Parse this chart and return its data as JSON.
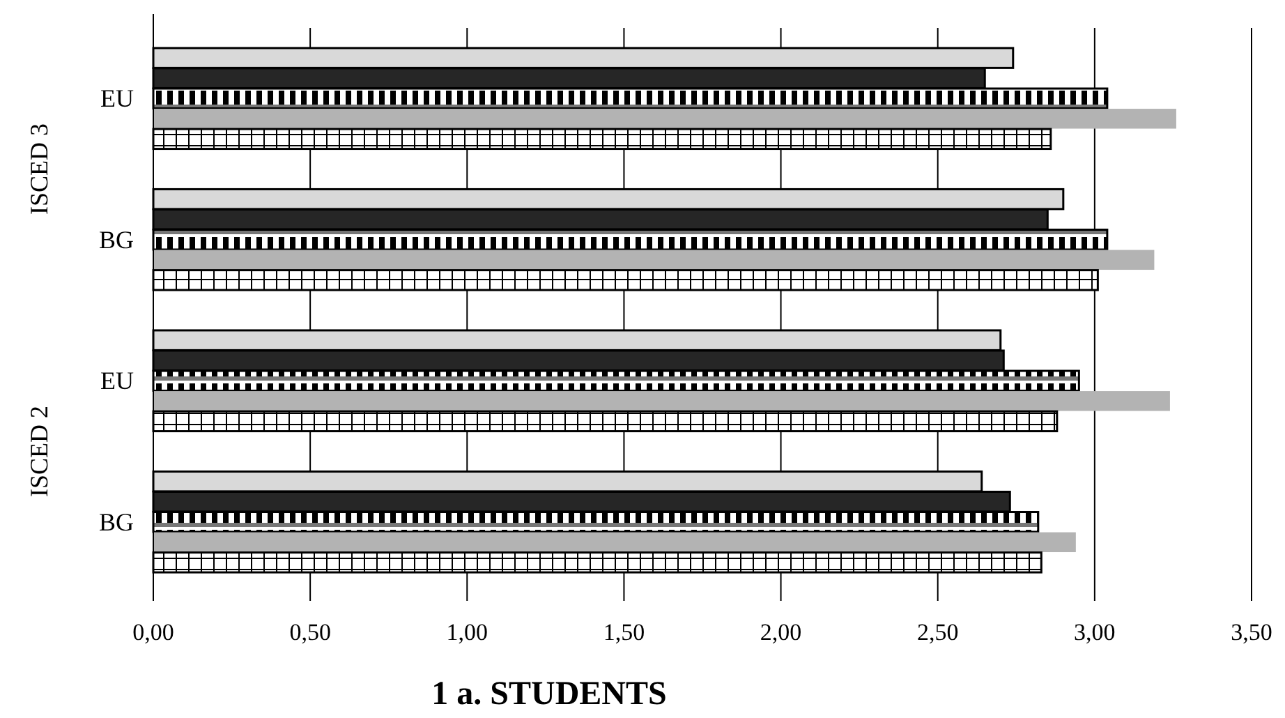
{
  "chart_data": {
    "type": "bar",
    "orientation": "horizontal",
    "title": "1 a. STUDENTS",
    "categories": [
      "EU",
      "BG",
      "EU",
      "BG"
    ],
    "annotations": [
      "ISCED 3",
      "ISCED 2"
    ],
    "series": [
      {
        "color": "#d9d9d9",
        "values": [
          2.74,
          2.9,
          2.7,
          2.64
        ]
      },
      {
        "color": "#262626",
        "values": [
          2.65,
          2.85,
          2.71,
          2.73
        ]
      },
      {
        "color": "#000000",
        "values": [
          3.04,
          3.04,
          2.95,
          2.82
        ]
      },
      {
        "color": "#b3b3b3",
        "values": [
          3.26,
          3.19,
          3.24,
          2.94
        ]
      },
      {
        "color": "#000000",
        "values": [
          2.86,
          3.01,
          2.88,
          2.83
        ]
      }
    ],
    "xlim": [
      0,
      3.5
    ],
    "xticks": [
      {
        "value": 0,
        "label": "0,00"
      },
      {
        "value": 0.5,
        "label": "0,50"
      },
      {
        "value": 1,
        "label": "1,00"
      },
      {
        "value": 1.5,
        "label": "1,50"
      },
      {
        "value": 2,
        "label": "2,00"
      },
      {
        "value": 2.5,
        "label": "2,50"
      },
      {
        "value": 3,
        "label": "3,00"
      },
      {
        "value": 3.5,
        "label": "3,50"
      }
    ],
    "grid": "x"
  }
}
